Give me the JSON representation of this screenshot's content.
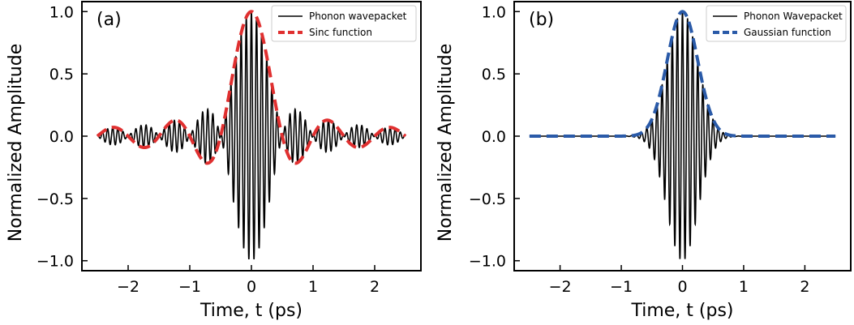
{
  "chart_data": [
    {
      "type": "line",
      "panel_label": "(a)",
      "xlabel": "Time, t (ps)",
      "ylabel": "Normalized Amplitude",
      "xlim": [
        -2.75,
        2.75
      ],
      "ylim": [
        -1.08,
        1.08
      ],
      "xticks": [
        -2,
        -1,
        0,
        1,
        2
      ],
      "xtick_labels": [
        "−2",
        "−1",
        "0",
        "1",
        "2"
      ],
      "yticks": [
        -1.0,
        -0.5,
        0.0,
        0.5,
        1.0
      ],
      "ytick_labels": [
        "−1.0",
        "−0.5",
        "0.0",
        "0.5",
        "1.0"
      ],
      "grid": false,
      "legend_position": "top-right",
      "series": [
        {
          "name": "Phonon wavepacket",
          "color": "#000000",
          "style": "solid",
          "function": "sinc(t/0.5) * cos(2*pi*12*t)",
          "x_range": [
            -2.5,
            2.5
          ]
        },
        {
          "name": "Sinc function",
          "color": "#e03030",
          "style": "dashed",
          "function": "sinc(t/0.5)",
          "x_range": [
            -2.5,
            2.5
          ]
        }
      ]
    },
    {
      "type": "line",
      "panel_label": "(b)",
      "xlabel": "Time, t (ps)",
      "ylabel": "Normalized Amplitude",
      "xlim": [
        -2.75,
        2.75
      ],
      "ylim": [
        -1.08,
        1.08
      ],
      "xticks": [
        -2,
        -1,
        0,
        1,
        2
      ],
      "xtick_labels": [
        "−2",
        "−1",
        "0",
        "1",
        "2"
      ],
      "yticks": [
        -1.0,
        -0.5,
        0.0,
        0.5,
        1.0
      ],
      "ytick_labels": [
        "−1.0",
        "−0.5",
        "0.0",
        "0.5",
        "1.0"
      ],
      "grid": false,
      "legend_position": "top-right",
      "series": [
        {
          "name": "Phonon Wavepacket",
          "color": "#000000",
          "style": "solid",
          "function": "exp(-t^2/(2*0.25^2)) * cos(2*pi*12*t)",
          "x_range": [
            -2.5,
            2.5
          ]
        },
        {
          "name": "Gaussian function",
          "color": "#2a5aa8",
          "style": "dashed",
          "function": "exp(-t^2/(2*0.25^2))",
          "x_range": [
            -2.5,
            2.5
          ]
        }
      ]
    }
  ]
}
